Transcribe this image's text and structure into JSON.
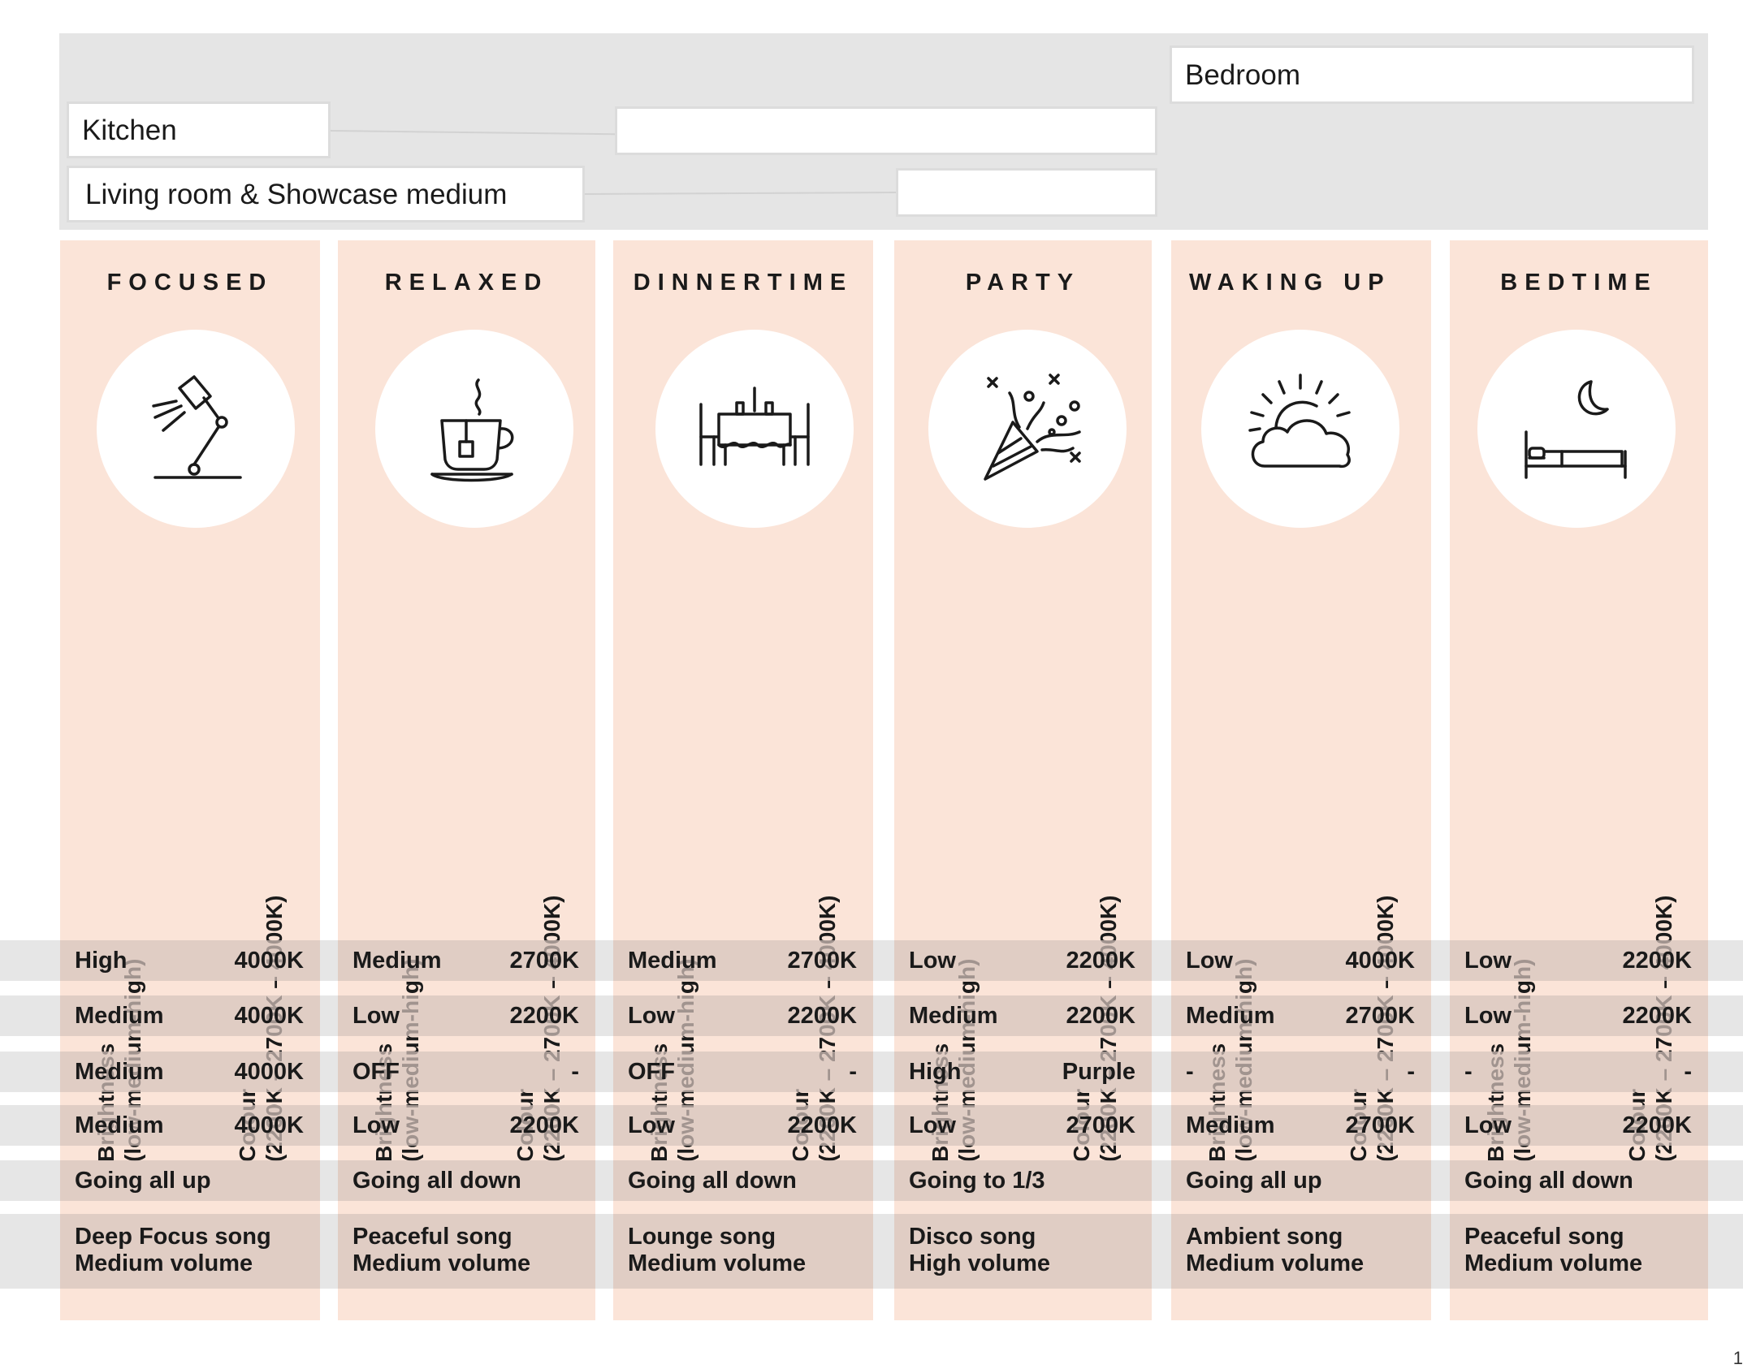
{
  "rooms": {
    "bedroom": "Bedroom",
    "kitchen": "Kitchen",
    "living_room": "Living room & Showcase medium"
  },
  "columns": [
    {
      "title": "FOCUSED",
      "icon": "desk-lamp-icon",
      "brightness_label": "Brightness",
      "brightness_range": "(low-medium-high)",
      "colour_label": "Colour",
      "colour_range": "(2200K – 2700K – 4000K)",
      "rows": [
        [
          "High",
          "4000K"
        ],
        [
          "Medium",
          "4000K"
        ],
        [
          "Medium",
          "4000K"
        ],
        [
          "Medium",
          "4000K"
        ]
      ],
      "blinds": "Going all up",
      "song": "Deep Focus song",
      "volume": "Medium volume"
    },
    {
      "title": "RELAXED",
      "icon": "tea-cup-icon",
      "brightness_label": "Brightness",
      "brightness_range": "(low-medium-high)",
      "colour_label": "Colour",
      "colour_range": "(2200K – 2700K – 4000K)",
      "rows": [
        [
          "Medium",
          "2700K"
        ],
        [
          "Low",
          "2200K"
        ],
        [
          "OFF",
          "-"
        ],
        [
          "Low",
          "2200K"
        ]
      ],
      "blinds": "Going all down",
      "song": "Peaceful song",
      "volume": "Medium volume"
    },
    {
      "title": "DINNERTIME",
      "icon": "dinner-table-icon",
      "brightness_label": "Brightness",
      "brightness_range": "(low-medium-high)",
      "colour_label": "Colour",
      "colour_range": "(2200K – 2700K – 4000K)",
      "rows": [
        [
          "Medium",
          "2700K"
        ],
        [
          "Low",
          "2200K"
        ],
        [
          "OFF",
          "-"
        ],
        [
          "Low",
          "2200K"
        ]
      ],
      "blinds": "Going all down",
      "song": "Lounge song",
      "volume": "Medium volume"
    },
    {
      "title": "PARTY",
      "icon": "party-popper-icon",
      "brightness_label": "Brightness",
      "brightness_range": "(low-medium-high)",
      "colour_label": "Colour",
      "colour_range": "(2200K – 2700K – 4000K)",
      "rows": [
        [
          "Low",
          "2200K"
        ],
        [
          "Medium",
          "2200K"
        ],
        [
          "High",
          "Purple"
        ],
        [
          "Low",
          "2700K"
        ]
      ],
      "blinds": "Going to 1/3",
      "song": "Disco song",
      "volume": "High volume"
    },
    {
      "title": "WAKING UP",
      "icon": "sunrise-cloud-icon",
      "brightness_label": "Brightness",
      "brightness_range": "(low-medium-high)",
      "colour_label": "Colour",
      "colour_range": "(2200K – 2700K – 4000K)",
      "rows": [
        [
          "Low",
          "4000K"
        ],
        [
          "Medium",
          "2700K"
        ],
        [
          "-",
          "-"
        ],
        [
          "Medium",
          "2700K"
        ]
      ],
      "blinds": "Going all up",
      "song": "Ambient song",
      "volume": "Medium volume"
    },
    {
      "title": "BEDTIME",
      "icon": "moon-bed-icon",
      "brightness_label": "Brightness",
      "brightness_range": "(low-medium-high)",
      "colour_label": "Colour",
      "colour_range": "(2200K – 2700K – 4000K)",
      "rows": [
        [
          "Low",
          "2200K"
        ],
        [
          "Low",
          "2200K"
        ],
        [
          "-",
          "-"
        ],
        [
          "Low",
          "2200K"
        ]
      ],
      "blinds": "Going all down",
      "song": "Peaceful song",
      "volume": "Medium volume"
    }
  ],
  "page_number": "1",
  "colors": {
    "column_bg": "#fbe4d8",
    "band_bg": "#e6e6e6",
    "cell_bg": "#d6c4bc",
    "panel_bg": "#e5e5e5"
  }
}
